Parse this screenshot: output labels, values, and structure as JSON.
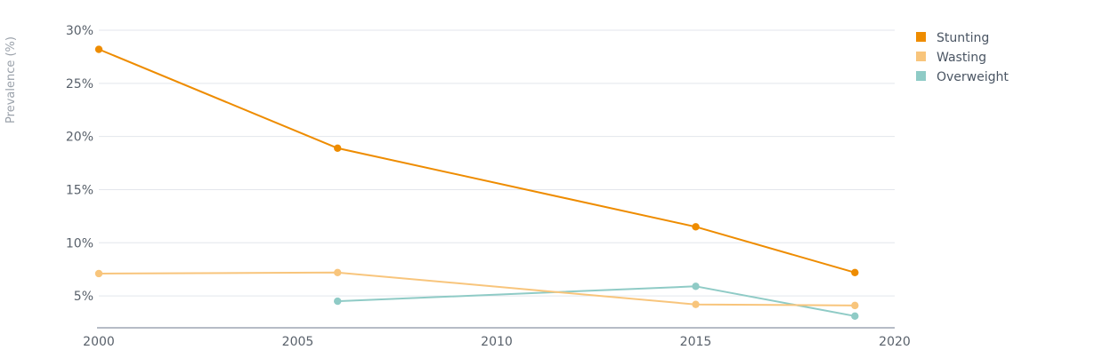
{
  "chart_data": {
    "type": "line",
    "ylabel": "Prevalence (%)",
    "xlabel": "",
    "xlim": [
      2000,
      2020
    ],
    "ylim": [
      2,
      30
    ],
    "x_ticks": [
      2000,
      2005,
      2010,
      2015,
      2020
    ],
    "y_ticks": [
      5,
      10,
      15,
      20,
      25,
      30
    ],
    "y_tick_labels": [
      "5%",
      "10%",
      "15%",
      "20%",
      "25%",
      "30%"
    ],
    "grid": "horizontal",
    "legend_position": "top-right",
    "series": [
      {
        "name": "Stunting",
        "color": "#ee8c00",
        "points": [
          {
            "x": 2000,
            "y": 28.2
          },
          {
            "x": 2006,
            "y": 18.9
          },
          {
            "x": 2015,
            "y": 11.5
          },
          {
            "x": 2019,
            "y": 7.2
          }
        ]
      },
      {
        "name": "Wasting",
        "color": "#f8c57c",
        "points": [
          {
            "x": 2000,
            "y": 7.1
          },
          {
            "x": 2006,
            "y": 7.2
          },
          {
            "x": 2015,
            "y": 4.2
          },
          {
            "x": 2019,
            "y": 4.1
          }
        ]
      },
      {
        "name": "Overweight",
        "color": "#8fcbc6",
        "points": [
          {
            "x": 2006,
            "y": 4.5
          },
          {
            "x": 2015,
            "y": 5.9
          },
          {
            "x": 2019,
            "y": 3.1
          }
        ]
      }
    ]
  },
  "colors": {
    "gridline": "#e3e6ec",
    "baseline": "#8a95a3",
    "tick_text": "#59616b",
    "axis_title": "#9aa1aa"
  }
}
